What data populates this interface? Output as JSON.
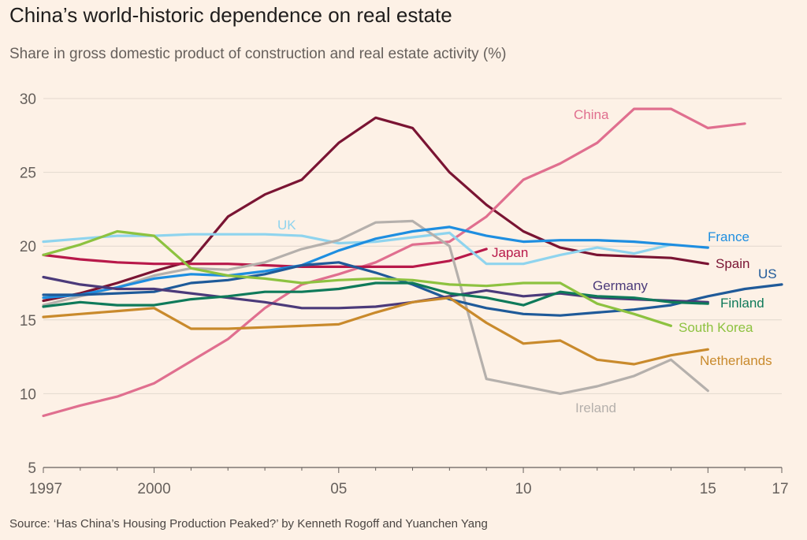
{
  "title": "China’s world-historic dependence on real estate",
  "subtitle": "Share in gross domestic product of construction and real estate activity (%)",
  "source": "Source: ‘Has China’s Housing Production Peaked?’ by Kenneth Rogoff and Yuanchen Yang",
  "chart_data": {
    "type": "line",
    "title": "China’s world-historic dependence on real estate",
    "subtitle": "Share in gross domestic product of construction and real estate activity (%)",
    "ylim": [
      5,
      30
    ],
    "xlim": [
      1997,
      2017
    ],
    "y_ticks": [
      5,
      10,
      15,
      20,
      25,
      30
    ],
    "x_ticks": [
      {
        "value": 1997,
        "label": "1997"
      },
      {
        "value": 2000,
        "label": "2000"
      },
      {
        "value": 2005,
        "label": "05"
      },
      {
        "value": 2010,
        "label": "10"
      },
      {
        "value": 2015,
        "label": "15"
      },
      {
        "value": 2017,
        "label": "17"
      }
    ],
    "grid": "horizontal",
    "legend": "inline labels",
    "series": [
      {
        "name": "Spain",
        "color": "#7a1433",
        "x": [
          1997,
          1998,
          1999,
          2000,
          2001,
          2002,
          2003,
          2004,
          2005,
          2006,
          2007,
          2008,
          2009,
          2010,
          2011,
          2012,
          2013,
          2014,
          2015
        ],
        "values": [
          16.3,
          16.8,
          17.5,
          18.3,
          19.0,
          22.0,
          23.5,
          24.5,
          27.0,
          28.7,
          28.0,
          25.0,
          22.8,
          21.0,
          19.9,
          19.4,
          19.3,
          19.2,
          18.8
        ]
      },
      {
        "name": "China",
        "color": "#e06f8f",
        "x": [
          1997,
          1998,
          1999,
          2000,
          2001,
          2002,
          2003,
          2004,
          2005,
          2006,
          2007,
          2008,
          2009,
          2010,
          2011,
          2012,
          2013,
          2014,
          2015,
          2016
        ],
        "values": [
          8.5,
          9.2,
          9.8,
          10.7,
          12.2,
          13.7,
          15.8,
          17.4,
          18.1,
          18.9,
          20.1,
          20.3,
          22.0,
          24.5,
          25.6,
          27.0,
          29.3,
          29.3,
          28.0,
          28.3
        ]
      },
      {
        "name": "Japan",
        "color": "#b8194a",
        "x": [
          1997,
          1998,
          1999,
          2000,
          2001,
          2002,
          2003,
          2004,
          2005,
          2006,
          2007,
          2008,
          2009
        ],
        "values": [
          19.4,
          19.1,
          18.9,
          18.8,
          18.8,
          18.8,
          18.7,
          18.6,
          18.6,
          18.6,
          18.6,
          19.0,
          19.8
        ]
      },
      {
        "name": "UK",
        "color": "#8fd4ee",
        "x": [
          1997,
          1998,
          1999,
          2000,
          2001,
          2002,
          2003,
          2004,
          2005,
          2006,
          2007,
          2008,
          2009,
          2010,
          2011,
          2012,
          2013,
          2014
        ],
        "values": [
          20.3,
          20.5,
          20.7,
          20.7,
          20.8,
          20.8,
          20.8,
          20.7,
          20.2,
          20.3,
          20.6,
          20.9,
          18.8,
          18.8,
          19.4,
          19.9,
          19.5,
          20.1
        ]
      },
      {
        "name": "Ireland",
        "color": "#b5b0ac",
        "x": [
          1997,
          1998,
          1999,
          2000,
          2001,
          2002,
          2003,
          2004,
          2005,
          2006,
          2007,
          2008,
          2009,
          2010,
          2011,
          2012,
          2013,
          2014,
          2015
        ],
        "values": [
          16.0,
          16.6,
          17.2,
          18.0,
          18.5,
          18.4,
          18.9,
          19.8,
          20.4,
          21.6,
          21.7,
          20.0,
          11.0,
          10.5,
          10.0,
          10.5,
          11.2,
          12.3,
          10.2
        ]
      },
      {
        "name": "France",
        "color": "#1e8ee0",
        "x": [
          1997,
          1998,
          1999,
          2000,
          2001,
          2002,
          2003,
          2004,
          2005,
          2006,
          2007,
          2008,
          2009,
          2010,
          2011,
          2012,
          2013,
          2014,
          2015
        ],
        "values": [
          16.5,
          16.7,
          17.2,
          17.8,
          18.1,
          18.0,
          18.3,
          18.7,
          19.7,
          20.5,
          21.0,
          21.3,
          20.7,
          20.3,
          20.4,
          20.4,
          20.3,
          20.1,
          19.9
        ]
      },
      {
        "name": "US",
        "color": "#1f5a99",
        "x": [
          1997,
          1998,
          1999,
          2000,
          2001,
          2002,
          2003,
          2004,
          2005,
          2006,
          2007,
          2008,
          2009,
          2010,
          2011,
          2012,
          2013,
          2014,
          2015,
          2016,
          2017
        ],
        "values": [
          16.7,
          16.7,
          16.8,
          16.9,
          17.5,
          17.7,
          18.1,
          18.7,
          18.9,
          18.2,
          17.4,
          16.4,
          15.8,
          15.4,
          15.3,
          15.5,
          15.7,
          16.0,
          16.6,
          17.1,
          17.4
        ]
      },
      {
        "name": "Germany",
        "color": "#4b3a7a",
        "x": [
          1997,
          1998,
          1999,
          2000,
          2001,
          2002,
          2003,
          2004,
          2005,
          2006,
          2007,
          2008,
          2009,
          2010,
          2011,
          2012,
          2013,
          2014,
          2015
        ],
        "values": [
          17.9,
          17.4,
          17.1,
          17.1,
          16.8,
          16.5,
          16.2,
          15.8,
          15.8,
          15.9,
          16.2,
          16.6,
          17.0,
          16.6,
          16.8,
          16.5,
          16.4,
          16.3,
          16.2
        ]
      },
      {
        "name": "Finland",
        "color": "#0f7a5a",
        "x": [
          1997,
          1998,
          1999,
          2000,
          2001,
          2002,
          2003,
          2004,
          2005,
          2006,
          2007,
          2008,
          2009,
          2010,
          2011,
          2012,
          2013,
          2014,
          2015
        ],
        "values": [
          15.9,
          16.2,
          16.0,
          16.0,
          16.4,
          16.6,
          16.9,
          16.9,
          17.1,
          17.5,
          17.5,
          16.8,
          16.5,
          16.0,
          16.9,
          16.6,
          16.5,
          16.2,
          16.1
        ]
      },
      {
        "name": "South Korea",
        "color": "#8dc240",
        "x": [
          1997,
          1998,
          1999,
          2000,
          2001,
          2002,
          2003,
          2004,
          2005,
          2006,
          2007,
          2008,
          2009,
          2010,
          2011,
          2012,
          2013,
          2014
        ],
        "values": [
          19.4,
          20.1,
          21.0,
          20.7,
          18.5,
          18.0,
          17.8,
          17.5,
          17.7,
          17.8,
          17.7,
          17.4,
          17.3,
          17.5,
          17.5,
          16.1,
          15.4,
          14.6
        ]
      },
      {
        "name": "Netherlands",
        "color": "#c98a2c",
        "x": [
          1997,
          1998,
          1999,
          2000,
          2001,
          2002,
          2003,
          2004,
          2005,
          2006,
          2007,
          2008,
          2009,
          2010,
          2011,
          2012,
          2013,
          2014,
          2015
        ],
        "values": [
          15.2,
          15.4,
          15.6,
          15.8,
          14.4,
          14.4,
          14.5,
          14.6,
          14.7,
          15.5,
          16.2,
          16.5,
          14.8,
          13.4,
          13.6,
          12.3,
          12.0,
          12.6,
          13.0
        ]
      }
    ]
  }
}
